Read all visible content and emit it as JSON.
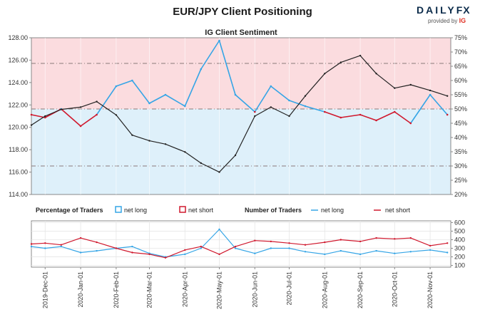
{
  "title": "EUR/JPY Client Positioning",
  "logo": {
    "brand_main": "DAILY",
    "brand_fx": "FX",
    "provided_by": "provided by",
    "provider": "IG"
  },
  "colors": {
    "net_long": "#35a5e6",
    "net_short": "#d0192e",
    "price": "#222222",
    "upper_zone": "#fbdcdf",
    "lower_zone": "#def0fa"
  },
  "chart_data": [
    {
      "type": "line",
      "title": "IG Client Sentiment",
      "yaxis_left": {
        "ticks": [
          "114.00",
          "116.00",
          "118.00",
          "120.00",
          "122.00",
          "124.00",
          "126.00",
          "128.00"
        ],
        "range": [
          114,
          128
        ]
      },
      "yaxis_right": {
        "ticks": [
          "20%",
          "25%",
          "30%",
          "35%",
          "40%",
          "45%",
          "50%",
          "55%",
          "60%",
          "65%",
          "70%",
          "75%"
        ],
        "range": [
          20,
          75
        ]
      },
      "reference_lines_pct": [
        30,
        50,
        66
      ],
      "series": [
        {
          "key": "net_long",
          "x": [
            "2019-11-19",
            "2019-12-01",
            "2019-12-15",
            "2020-01-01",
            "2020-01-15",
            "2020-02-01",
            "2020-02-15",
            "2020-03-01",
            "2020-03-15",
            "2020-04-01",
            "2020-04-15",
            "2020-05-01",
            "2020-05-15",
            "2020-06-01",
            "2020-06-15",
            "2020-07-01",
            "2020-07-15",
            "2020-08-01",
            "2020-08-15",
            "2020-09-01",
            "2020-09-15",
            "2020-10-01",
            "2020-10-15",
            "2020-11-01",
            "2020-11-16"
          ],
          "y": [
            48,
            47,
            50,
            44,
            48,
            58,
            60,
            52,
            55,
            51,
            64,
            74,
            55,
            49,
            58,
            53,
            51,
            49,
            47,
            48,
            46,
            49,
            45,
            55,
            48
          ]
        },
        {
          "key": "net_short",
          "x": [
            "2019-11-19",
            "2019-12-01",
            "2019-12-15",
            "2020-01-01",
            "2020-01-15",
            "2020-02-01",
            "2020-02-15",
            "2020-03-01",
            "2020-03-15",
            "2020-04-01",
            "2020-04-15",
            "2020-05-01",
            "2020-05-15",
            "2020-06-01",
            "2020-06-15",
            "2020-07-01",
            "2020-07-15",
            "2020-08-01",
            "2020-08-15",
            "2020-09-01",
            "2020-09-15",
            "2020-10-01",
            "2020-10-15",
            "2020-11-01",
            "2020-11-16"
          ],
          "y": [
            52,
            53,
            50,
            56,
            52,
            42,
            40,
            48,
            45,
            49,
            36,
            26,
            45,
            51,
            42,
            47,
            49,
            51,
            53,
            52,
            54,
            51,
            55,
            45,
            52
          ]
        },
        {
          "key": "price",
          "x": [
            "2019-11-19",
            "2019-12-01",
            "2019-12-15",
            "2020-01-01",
            "2020-01-15",
            "2020-02-01",
            "2020-02-15",
            "2020-03-01",
            "2020-03-15",
            "2020-04-01",
            "2020-04-15",
            "2020-05-01",
            "2020-05-15",
            "2020-06-01",
            "2020-06-15",
            "2020-07-01",
            "2020-07-15",
            "2020-08-01",
            "2020-08-15",
            "2020-09-01",
            "2020-09-15",
            "2020-10-01",
            "2020-10-15",
            "2020-11-01",
            "2020-11-16"
          ],
          "y": [
            120.2,
            121.0,
            121.6,
            121.8,
            122.3,
            121.1,
            119.3,
            118.8,
            118.5,
            117.8,
            116.8,
            116.0,
            117.5,
            121.0,
            121.8,
            121.0,
            122.8,
            124.8,
            125.8,
            126.4,
            124.8,
            123.5,
            123.8,
            123.3,
            122.8
          ]
        }
      ]
    },
    {
      "type": "line",
      "yaxis_right": {
        "ticks": [
          "100",
          "200",
          "300",
          "400",
          "500",
          "600"
        ],
        "range": [
          80,
          620
        ]
      },
      "legend_left": {
        "title": "Percentage of Traders",
        "net_long": "net long",
        "net_short": "net short"
      },
      "legend_right": {
        "title": "Number of Traders",
        "net_long": "net long",
        "net_short": "net short"
      },
      "x_ticks": [
        "2019-Dec-01",
        "2020-Jan-01",
        "2020-Feb-01",
        "2020-Mar-01",
        "2020-Apr-01",
        "2020-May-01",
        "2020-Jun-01",
        "2020-Jul-01",
        "2020-Aug-01",
        "2020-Sep-01",
        "2020-Oct-01",
        "2020-Nov-01"
      ],
      "series": [
        {
          "key": "net_long",
          "x": [
            "2019-11-19",
            "2019-12-01",
            "2019-12-15",
            "2020-01-01",
            "2020-01-15",
            "2020-02-01",
            "2020-02-15",
            "2020-03-01",
            "2020-03-15",
            "2020-04-01",
            "2020-04-15",
            "2020-05-01",
            "2020-05-15",
            "2020-06-01",
            "2020-06-15",
            "2020-07-01",
            "2020-07-15",
            "2020-08-01",
            "2020-08-15",
            "2020-09-01",
            "2020-09-15",
            "2020-10-01",
            "2020-10-15",
            "2020-11-01",
            "2020-11-16"
          ],
          "y": [
            320,
            300,
            320,
            250,
            270,
            300,
            320,
            240,
            200,
            230,
            300,
            520,
            300,
            240,
            300,
            300,
            260,
            230,
            270,
            230,
            270,
            240,
            260,
            280,
            250
          ]
        },
        {
          "key": "net_short",
          "x": [
            "2019-11-19",
            "2019-12-01",
            "2019-12-15",
            "2020-01-01",
            "2020-01-15",
            "2020-02-01",
            "2020-02-15",
            "2020-03-01",
            "2020-03-15",
            "2020-04-01",
            "2020-04-15",
            "2020-05-01",
            "2020-05-15",
            "2020-06-01",
            "2020-06-15",
            "2020-07-01",
            "2020-07-15",
            "2020-08-01",
            "2020-08-15",
            "2020-09-01",
            "2020-09-15",
            "2020-10-01",
            "2020-10-15",
            "2020-11-01",
            "2020-11-16"
          ],
          "y": [
            350,
            360,
            340,
            420,
            370,
            300,
            250,
            230,
            190,
            280,
            320,
            230,
            320,
            390,
            380,
            360,
            340,
            370,
            400,
            380,
            420,
            410,
            420,
            330,
            360
          ]
        }
      ]
    }
  ]
}
